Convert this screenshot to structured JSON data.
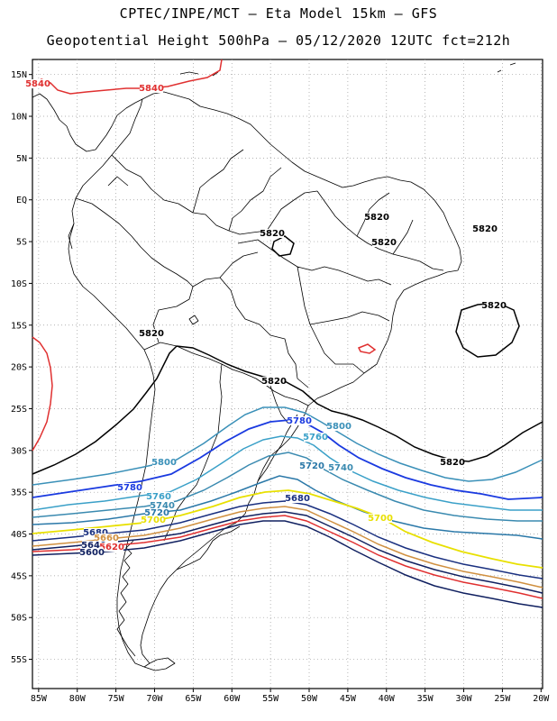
{
  "header": {
    "line1": "CPTEC/INPE/MCT –  Eta Model 15km – GFS",
    "line2": "Geopotential Height 500hPa – 05/12/2020 12UTC fct=212h"
  },
  "axes": {
    "lat_labels": [
      "15N",
      "10N",
      "5N",
      "EQ",
      "5S",
      "10S",
      "15S",
      "20S",
      "25S",
      "30S",
      "35S",
      "40S",
      "45S",
      "50S",
      "55S"
    ],
    "lat_values": [
      15,
      10,
      5,
      0,
      -5,
      -10,
      -15,
      -20,
      -25,
      -30,
      -35,
      -40,
      -45,
      -50,
      -55
    ],
    "lon_labels": [
      "85W",
      "80W",
      "75W",
      "70W",
      "65W",
      "60W",
      "55W",
      "50W",
      "45W",
      "40W",
      "35W",
      "30W",
      "25W",
      "20W"
    ],
    "lon_values": [
      -85,
      -80,
      -75,
      -70,
      -65,
      -60,
      -55,
      -50,
      -45,
      -40,
      -35,
      -30,
      -25,
      -20
    ],
    "lon_range": [
      -85.8,
      -19.8
    ],
    "lat_range": [
      -58.5,
      16.8
    ],
    "grid": "dotted"
  },
  "contours": {
    "levels": [
      {
        "value": "5840",
        "color": "#e03030"
      },
      {
        "value": "5820",
        "color": "#000000"
      },
      {
        "value": "5800",
        "color": "#3a90b8"
      },
      {
        "value": "5780",
        "color": "#1a3ae0"
      },
      {
        "value": "5760",
        "color": "#3aa0c8"
      },
      {
        "value": "5740",
        "color": "#3a8ab0"
      },
      {
        "value": "5720",
        "color": "#2a78a8"
      },
      {
        "value": "5700",
        "color": "#e8e000"
      },
      {
        "value": "5680",
        "color": "#1a3080"
      },
      {
        "value": "5660",
        "color": "#d09040"
      },
      {
        "value": "5640",
        "color": "#102060"
      },
      {
        "value": "5620",
        "color": "#e03030"
      },
      {
        "value": "5600",
        "color": "#102060"
      }
    ],
    "labels": [
      {
        "text": "5840",
        "color": "#e03030"
      },
      {
        "text": "5840",
        "color": "#e03030"
      },
      {
        "text": "5820",
        "color": "#000000"
      },
      {
        "text": "5820",
        "color": "#000000"
      },
      {
        "text": "5820",
        "color": "#000000"
      },
      {
        "text": "5820",
        "color": "#000000"
      },
      {
        "text": "5820",
        "color": "#000000"
      },
      {
        "text": "5820",
        "color": "#000000"
      },
      {
        "text": "5820",
        "color": "#000000"
      },
      {
        "text": "5820",
        "color": "#000000"
      },
      {
        "text": "5800",
        "color": "#3a90b8"
      },
      {
        "text": "5800",
        "color": "#3a90b8"
      },
      {
        "text": "5780",
        "color": "#1a3ae0"
      },
      {
        "text": "5780",
        "color": "#1a3ae0"
      },
      {
        "text": "5760",
        "color": "#3aa0c8"
      },
      {
        "text": "5760",
        "color": "#3aa0c8"
      },
      {
        "text": "5740",
        "color": "#3a8ab0"
      },
      {
        "text": "5740",
        "color": "#3a8ab0"
      },
      {
        "text": "5720",
        "color": "#2a78a8"
      },
      {
        "text": "5720",
        "color": "#2a78a8"
      },
      {
        "text": "5700",
        "color": "#e8e000"
      },
      {
        "text": "5700",
        "color": "#e8e000"
      },
      {
        "text": "5680",
        "color": "#1a3080"
      },
      {
        "text": "5680",
        "color": "#1a3080"
      },
      {
        "text": "5660",
        "color": "#d09040"
      },
      {
        "text": "5640",
        "color": "#102060"
      },
      {
        "text": "5620",
        "color": "#e03030"
      },
      {
        "text": "5600",
        "color": "#102060"
      }
    ]
  }
}
